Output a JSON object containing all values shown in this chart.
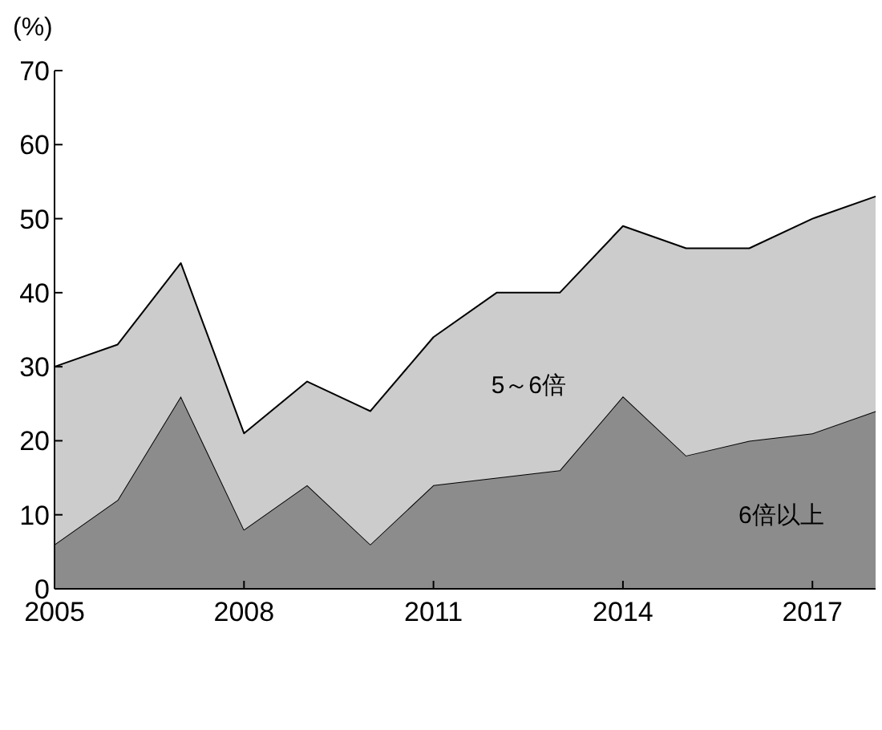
{
  "chart_data": {
    "type": "area",
    "stacked": true,
    "ylabel": "(%)",
    "x": [
      2005,
      2006,
      2007,
      2008,
      2009,
      2010,
      2011,
      2012,
      2013,
      2014,
      2015,
      2016,
      2017,
      2018
    ],
    "xlim": [
      2005,
      2018
    ],
    "xticks": [
      2005,
      2008,
      2011,
      2014,
      2017
    ],
    "ylim": [
      0,
      70
    ],
    "yticks": [
      0,
      10,
      20,
      30,
      40,
      50,
      60,
      70
    ],
    "series": [
      {
        "name": "6倍以上",
        "color": "#8c8c8c",
        "values": [
          6,
          12,
          26,
          8,
          14,
          6,
          14,
          15,
          16,
          26,
          18,
          20,
          21,
          24
        ]
      },
      {
        "name": "5～6倍",
        "color": "#cccccc",
        "values": [
          24,
          21,
          18,
          13,
          14,
          18,
          20,
          25,
          24,
          23,
          28,
          26,
          29,
          29
        ]
      }
    ]
  }
}
